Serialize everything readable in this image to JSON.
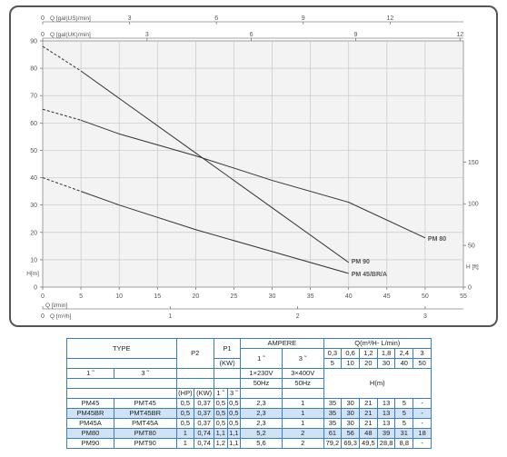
{
  "chart_data": {
    "type": "line",
    "xlabel": "Q [l/min]",
    "ylabel": "H[m]",
    "y2label": "H [ft]",
    "top_axis1_label": "Q [gal(US)/min]",
    "top_axis2_label": "Q [gal(UK)/min]",
    "bottom_axis2_label": "Q [m³/h]",
    "xlim": [
      0,
      55
    ],
    "ylim": [
      0,
      90
    ],
    "x_ticks": [
      "0",
      "5",
      "10",
      "15",
      "20",
      "25",
      "30",
      "35",
      "40",
      "45",
      "50",
      "55"
    ],
    "y_ticks": [
      "0",
      "10",
      "20",
      "30",
      "40",
      "50",
      "60",
      "70",
      "80",
      "90"
    ],
    "y2_ticks": [
      "0",
      "50",
      "100",
      "150"
    ],
    "top1_ticks": [
      "0",
      "3",
      "6",
      "9",
      "12"
    ],
    "top2_ticks": [
      "0",
      "3",
      "6",
      "9",
      "12"
    ],
    "bottom2_ticks": [
      "0",
      "1",
      "2",
      "3"
    ],
    "grid": true,
    "series": [
      {
        "name": "PM 80",
        "dashed_x": [
          0,
          5
        ],
        "dashed_y": [
          65,
          61
        ],
        "x": [
          5,
          10,
          20,
          30,
          40,
          50
        ],
        "y": [
          61,
          56,
          48,
          39,
          31,
          18
        ]
      },
      {
        "name": "PM 90",
        "dashed_x": [
          0,
          5
        ],
        "dashed_y": [
          88,
          79
        ],
        "x": [
          5,
          10,
          20,
          30,
          40
        ],
        "y": [
          79,
          69,
          49,
          29,
          9
        ]
      },
      {
        "name": "PM 45/BR/A",
        "dashed_x": [
          0,
          5
        ],
        "dashed_y": [
          40,
          35
        ],
        "x": [
          5,
          10,
          20,
          30,
          40
        ],
        "y": [
          35,
          30,
          21,
          13,
          5
        ]
      }
    ]
  },
  "table": {
    "type_label": "TYPE",
    "p2_label": "P2",
    "p1_label": "P1",
    "kw_label": "(KW)",
    "ampere_label": "AMPERE",
    "q_label": "Q(m³/H- L/min)",
    "h_label": "H(m)",
    "single_phase": "1 ˜",
    "three_phase": "3 ˜",
    "v1": "1×230V",
    "v3": "3×400V",
    "hz1": "50Hz",
    "hz3": "50Hz",
    "hp": "(HP)",
    "kw": "(KW)",
    "q_m3h": [
      "0,3",
      "0,6",
      "1,2",
      "1,8",
      "2,4",
      "3"
    ],
    "q_lmin": [
      "5",
      "10",
      "20",
      "30",
      "40",
      "50"
    ],
    "rows": [
      {
        "t1": "PM45",
        "t3": "PMT45",
        "hp": "0,5",
        "kw": "0,37",
        "p1a": "0,5",
        "p1b": "0,5",
        "a1": "2,3",
        "a3": "1",
        "h": [
          "35",
          "30",
          "21",
          "13",
          "5",
          "-"
        ]
      },
      {
        "t1": "PM45BR",
        "t3": "PMT45BR",
        "hp": "0,5",
        "kw": "0,37",
        "p1a": "0,5",
        "p1b": "0,5",
        "a1": "2,3",
        "a3": "1",
        "h": [
          "35",
          "30",
          "21",
          "13",
          "5",
          "-"
        ]
      },
      {
        "t1": "PM45A",
        "t3": "PMT45A",
        "hp": "0,5",
        "kw": "0,37",
        "p1a": "0,5",
        "p1b": "0,5",
        "a1": "2,3",
        "a3": "1",
        "h": [
          "35",
          "30",
          "21",
          "13",
          "5",
          "-"
        ]
      },
      {
        "t1": "PM80",
        "t3": "PMT80",
        "hp": "1",
        "kw": "0,74",
        "p1a": "1,1",
        "p1b": "1,1",
        "a1": "5,2",
        "a3": "2",
        "h": [
          "61",
          "56",
          "48",
          "39",
          "31",
          "18"
        ]
      },
      {
        "t1": "PM90",
        "t3": "PMT90",
        "hp": "1",
        "kw": "0,74",
        "p1a": "1,2",
        "p1b": "1,1",
        "a1": "5,6",
        "a3": "2",
        "h": [
          "79,2",
          "69,3",
          "49,5",
          "28,8",
          "8,8",
          "-"
        ]
      }
    ]
  }
}
